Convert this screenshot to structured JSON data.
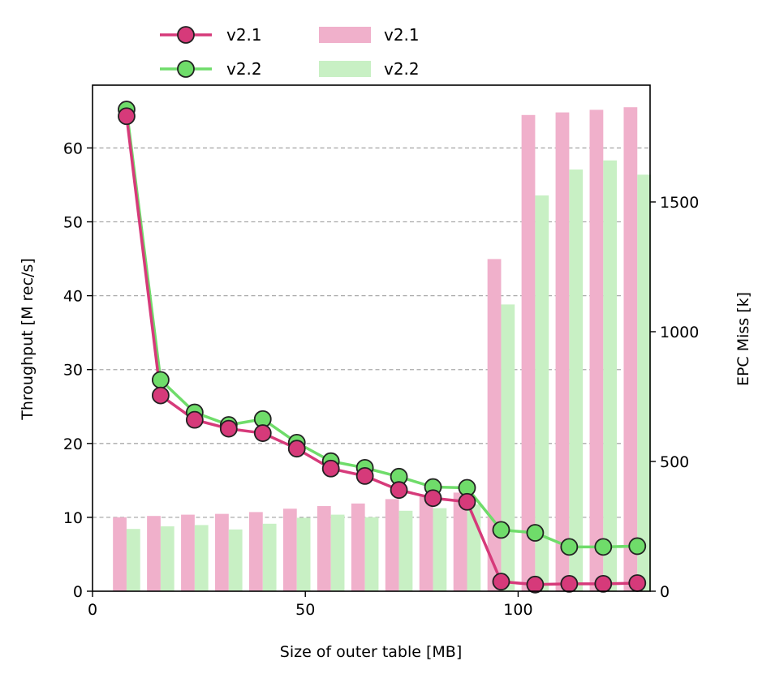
{
  "chart_data": {
    "type": "line+bar",
    "xlabel": "Size of outer table [MB]",
    "ylabel": "Throughput [M rec/s]",
    "y2label": "EPC Miss [k]",
    "xlim": [
      0,
      131
    ],
    "ylim": [
      0,
      68.5
    ],
    "y2lim": [
      0,
      1950
    ],
    "x_ticks": [
      0,
      50,
      100
    ],
    "y_ticks": [
      0,
      10,
      20,
      30,
      40,
      50,
      60
    ],
    "y2_ticks": [
      0,
      500,
      1000,
      1500
    ],
    "grid": "y-major-dashed",
    "legend_position": "top, above plot",
    "x": [
      8,
      16,
      24,
      32,
      40,
      48,
      56,
      64,
      72,
      80,
      88,
      96,
      104,
      112,
      120,
      128
    ],
    "line_series": [
      {
        "name": "v2.1",
        "color": "#d63a7a",
        "values": [
          64.3,
          26.5,
          23.2,
          22.0,
          21.4,
          19.3,
          16.6,
          15.6,
          13.7,
          12.6,
          12.1,
          1.3,
          0.9,
          1.0,
          1.0,
          1.1
        ]
      },
      {
        "name": "v2.2",
        "color": "#6fdc6a",
        "values": [
          65.2,
          28.6,
          24.2,
          22.5,
          23.3,
          20.1,
          17.6,
          16.7,
          15.5,
          14.1,
          14.0,
          8.3,
          7.9,
          6.0,
          6.0,
          6.1
        ]
      }
    ],
    "bar_series": [
      {
        "name": "v2.1",
        "color": "#f0b0cb",
        "values": [
          285,
          290,
          295,
          298,
          305,
          318,
          328,
          338,
          355,
          365,
          380,
          1280,
          1835,
          1845,
          1855,
          1865
        ]
      },
      {
        "name": "v2.2",
        "color": "#c8f0c4",
        "values": [
          240,
          250,
          255,
          238,
          260,
          283,
          295,
          285,
          310,
          320,
          335,
          1105,
          1525,
          1625,
          1660,
          1605
        ]
      }
    ]
  },
  "legend": [
    {
      "label": "v2.1",
      "kind": "line",
      "color": "#d63a7a"
    },
    {
      "label": "v2.2",
      "kind": "line",
      "color": "#6fdc6a"
    },
    {
      "label": "v2.1",
      "kind": "bar",
      "color": "#f0b0cb"
    },
    {
      "label": "v2.2",
      "kind": "bar",
      "color": "#c8f0c4"
    }
  ]
}
